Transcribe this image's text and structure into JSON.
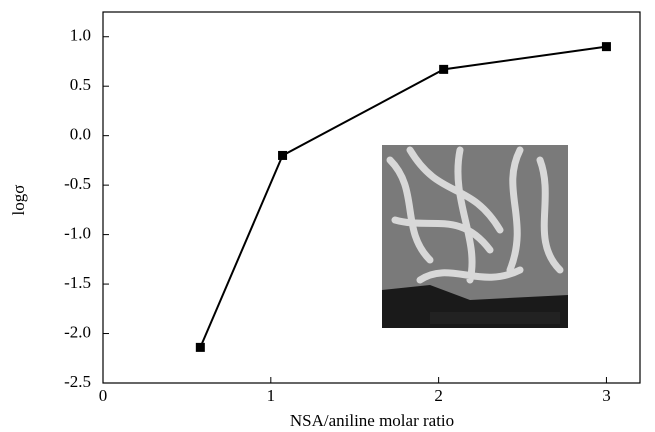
{
  "chart_data": {
    "type": "line",
    "x_label": "NSA/aniline molar ratio",
    "y_label": "logσ",
    "x": [
      0.58,
      1.07,
      2.03,
      3.0
    ],
    "series": [
      {
        "color": "#000000",
        "values": [
          -2.14,
          -0.2,
          0.67,
          0.9
        ]
      }
    ],
    "xlim": [
      0,
      3.2
    ],
    "xticks": [
      0,
      1,
      2,
      3
    ],
    "ylim": [
      -2.5,
      1.25
    ],
    "yticks": [
      {
        "value": -2.5,
        "label": "-2.5"
      },
      {
        "value": -2,
        "label": "-2.0"
      },
      {
        "value": -1.5,
        "label": "-1.5"
      },
      {
        "value": -1,
        "label": "-1.0"
      },
      {
        "value": -0.5,
        "label": "-0.5"
      },
      {
        "value": 0,
        "label": "0.0"
      },
      {
        "value": 0.5,
        "label": "0.5"
      },
      {
        "value": 1,
        "label": "1.0"
      }
    ],
    "grid": false
  }
}
